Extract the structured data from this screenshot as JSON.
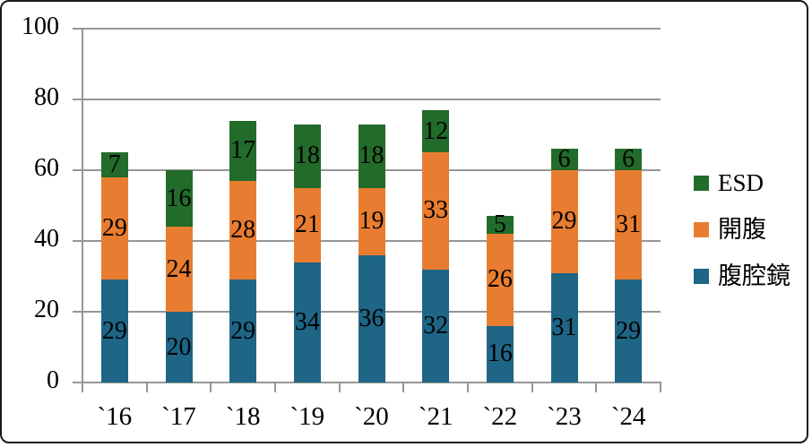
{
  "chart_data": {
    "type": "bar",
    "stacked": true,
    "title": "",
    "xlabel": "",
    "ylabel": "",
    "categories": [
      "`16",
      "`17",
      "`18",
      "`19",
      "`20",
      "`21",
      "`22",
      "`23",
      "`24"
    ],
    "series": [
      {
        "name": "腹腔鏡",
        "color": "#1E6586",
        "textured": true,
        "values": [
          29,
          20,
          29,
          34,
          36,
          32,
          16,
          31,
          29
        ]
      },
      {
        "name": "開腹",
        "color": "#E87D31",
        "textured": false,
        "values": [
          29,
          24,
          28,
          21,
          19,
          33,
          26,
          29,
          31
        ]
      },
      {
        "name": "ESD",
        "color": "#226B2A",
        "textured": false,
        "values": [
          7,
          16,
          17,
          18,
          18,
          12,
          5,
          6,
          6
        ]
      }
    ],
    "data_labels": true,
    "ylim": [
      0,
      100
    ],
    "yticks": [
      0,
      20,
      40,
      60,
      80,
      100
    ],
    "grid": true,
    "legend_position": "right",
    "legend_order": [
      "ESD",
      "開腹",
      "腹腔鏡"
    ],
    "axis_color": "#969696",
    "label_color": "#000000"
  }
}
